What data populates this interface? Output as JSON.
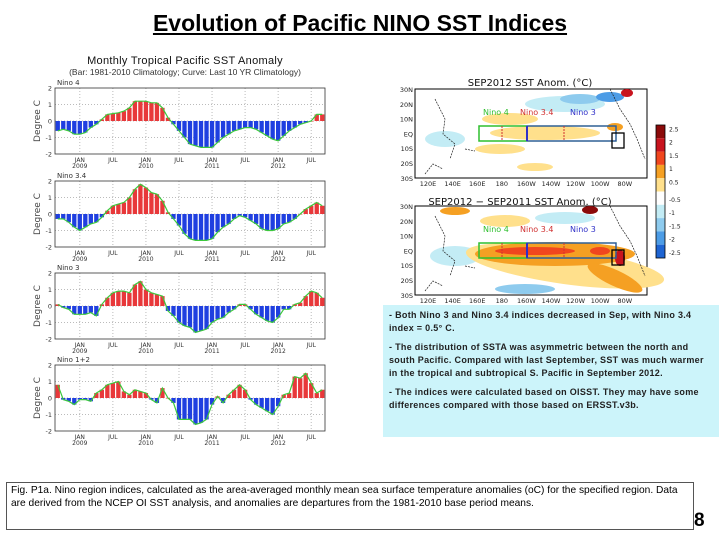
{
  "slide": {
    "title": "Evolution of Pacific NINO SST Indices",
    "page_number": "8",
    "caption": "Fig. P1a. Nino region indices, calculated as the area-averaged monthly mean sea surface temperature anomalies (oC) for the specified region. Data are derived from the NCEP OI SST analysis, and anomalies are departures from the 1981-2010 base period means."
  },
  "index_charts": {
    "title": "Monthly Tropical Pacific SST Anomaly",
    "subtitle": "(Bar: 1981-2010 Climatology; Curve: Last 10 YR Climatology)",
    "colors": {
      "positive": "#e8383a",
      "negative": "#1f3fe0",
      "curve": "#3cc83c"
    }
  },
  "chart_data": [
    {
      "type": "bar",
      "title": "Nino 4",
      "ylabel": "Degree C",
      "ylim": [
        -2,
        2
      ],
      "yticks": [
        2,
        1,
        0,
        -1,
        -2
      ],
      "grid": true,
      "x_start": "SEP 2008",
      "x_end": "SEP 2012",
      "xticks": [
        {
          "month_index": 4,
          "label": "JAN",
          "year": "2009"
        },
        {
          "month_index": 10,
          "label": "JUL",
          "year": ""
        },
        {
          "month_index": 16,
          "label": "JAN",
          "year": "2010"
        },
        {
          "month_index": 22,
          "label": "JUL",
          "year": ""
        },
        {
          "month_index": 28,
          "label": "JAN",
          "year": "2011"
        },
        {
          "month_index": 34,
          "label": "JUL",
          "year": ""
        },
        {
          "month_index": 40,
          "label": "JAN",
          "year": "2012"
        },
        {
          "month_index": 46,
          "label": "JUL",
          "year": ""
        }
      ],
      "values": [
        -0.6,
        -0.5,
        -0.6,
        -0.8,
        -0.8,
        -0.7,
        -0.4,
        -0.2,
        0.1,
        0.4,
        0.45,
        0.5,
        0.6,
        0.8,
        1.2,
        1.2,
        1.2,
        1.1,
        1.1,
        0.8,
        0.2,
        -0.2,
        -0.6,
        -1.0,
        -1.4,
        -1.5,
        -1.6,
        -1.6,
        -1.6,
        -1.3,
        -1.0,
        -0.8,
        -0.6,
        -0.5,
        -0.4,
        -0.4,
        -0.5,
        -0.7,
        -0.9,
        -1.1,
        -1.2,
        -0.9,
        -0.6,
        -0.4,
        -0.2,
        -0.1,
        0.0,
        0.4,
        0.4
      ]
    },
    {
      "type": "bar",
      "title": "Nino 3.4",
      "ylabel": "Degree C",
      "ylim": [
        -2,
        2
      ],
      "yticks": [
        2,
        1,
        0,
        -1,
        -2
      ],
      "grid": true,
      "x_start": "SEP 2008",
      "x_end": "SEP 2012",
      "xticks": [
        {
          "month_index": 4,
          "label": "JAN",
          "year": "2009"
        },
        {
          "month_index": 10,
          "label": "JUL",
          "year": ""
        },
        {
          "month_index": 16,
          "label": "JAN",
          "year": "2010"
        },
        {
          "month_index": 22,
          "label": "JUL",
          "year": ""
        },
        {
          "month_index": 28,
          "label": "JAN",
          "year": "2011"
        },
        {
          "month_index": 34,
          "label": "JUL",
          "year": ""
        },
        {
          "month_index": 40,
          "label": "JAN",
          "year": "2012"
        },
        {
          "month_index": 46,
          "label": "JUL",
          "year": ""
        }
      ],
      "values": [
        -0.3,
        -0.3,
        -0.5,
        -0.8,
        -1.0,
        -0.8,
        -0.6,
        -0.5,
        -0.2,
        0.2,
        0.5,
        0.6,
        0.7,
        1.0,
        1.5,
        1.8,
        1.6,
        1.3,
        1.2,
        0.8,
        0.1,
        -0.3,
        -0.7,
        -1.2,
        -1.5,
        -1.6,
        -1.6,
        -1.6,
        -1.5,
        -1.1,
        -0.8,
        -0.6,
        -0.3,
        -0.1,
        -0.2,
        -0.4,
        -0.6,
        -0.9,
        -1.0,
        -1.0,
        -0.9,
        -0.6,
        -0.5,
        -0.3,
        0.0,
        0.3,
        0.5,
        0.7,
        0.5
      ]
    },
    {
      "type": "bar",
      "title": "Nino 3",
      "ylabel": "Degree C",
      "ylim": [
        -2,
        2
      ],
      "yticks": [
        2,
        1,
        0,
        -1,
        -2
      ],
      "grid": true,
      "x_start": "SEP 2008",
      "x_end": "SEP 2012",
      "xticks": [
        {
          "month_index": 4,
          "label": "JAN",
          "year": "2009"
        },
        {
          "month_index": 10,
          "label": "JUL",
          "year": ""
        },
        {
          "month_index": 16,
          "label": "JAN",
          "year": "2010"
        },
        {
          "month_index": 22,
          "label": "JUL",
          "year": ""
        },
        {
          "month_index": 28,
          "label": "JAN",
          "year": "2011"
        },
        {
          "month_index": 34,
          "label": "JUL",
          "year": ""
        },
        {
          "month_index": 40,
          "label": "JAN",
          "year": "2012"
        },
        {
          "month_index": 46,
          "label": "JUL",
          "year": ""
        }
      ],
      "values": [
        0.1,
        -0.1,
        -0.2,
        -0.5,
        -0.5,
        -0.5,
        -0.4,
        -0.6,
        0.1,
        0.5,
        0.8,
        0.9,
        0.9,
        0.8,
        1.3,
        1.5,
        1.0,
        0.8,
        0.7,
        0.6,
        -0.3,
        -0.6,
        -1.0,
        -1.2,
        -1.3,
        -1.6,
        -1.5,
        -1.4,
        -1.0,
        -0.8,
        -0.7,
        -0.4,
        -0.2,
        0.1,
        0.1,
        -0.2,
        -0.5,
        -0.7,
        -0.9,
        -1.0,
        -0.7,
        -0.2,
        -0.2,
        0.1,
        0.2,
        0.6,
        0.9,
        0.8,
        0.5
      ]
    },
    {
      "type": "bar",
      "title": "Nino 1+2",
      "ylabel": "Degree C",
      "ylim": [
        -2,
        2
      ],
      "yticks": [
        2,
        1,
        0,
        -1,
        -2
      ],
      "grid": true,
      "x_start": "SEP 2008",
      "x_end": "SEP 2012",
      "xticks": [
        {
          "month_index": 4,
          "label": "JAN",
          "year": "2009"
        },
        {
          "month_index": 10,
          "label": "JUL",
          "year": ""
        },
        {
          "month_index": 16,
          "label": "JAN",
          "year": "2010"
        },
        {
          "month_index": 22,
          "label": "JUL",
          "year": ""
        },
        {
          "month_index": 28,
          "label": "JAN",
          "year": "2011"
        },
        {
          "month_index": 34,
          "label": "JUL",
          "year": ""
        },
        {
          "month_index": 40,
          "label": "JAN",
          "year": "2012"
        },
        {
          "month_index": 46,
          "label": "JUL",
          "year": ""
        }
      ],
      "values": [
        0.8,
        -0.1,
        -0.2,
        -0.4,
        -0.1,
        -0.1,
        -0.2,
        0.3,
        0.5,
        0.8,
        0.9,
        1.0,
        0.4,
        0.2,
        0.5,
        0.4,
        0.3,
        -0.1,
        -0.3,
        0.6,
        0.0,
        -0.3,
        -1.3,
        -1.3,
        -1.3,
        -1.6,
        -1.5,
        -1.3,
        -0.4,
        0.1,
        -0.3,
        0.2,
        0.5,
        0.8,
        0.5,
        -0.1,
        -0.4,
        -0.6,
        -0.8,
        -1.0,
        -0.5,
        0.2,
        0.3,
        1.3,
        1.2,
        1.5,
        0.9,
        0.3,
        0.5
      ]
    }
  ],
  "maps": {
    "top_title": "SEP2012  SST Anom. (°C)",
    "bottom_title": "SEP2012 − SEP2011  SST Anom. (°C)",
    "lat_labels": [
      "30N",
      "20N",
      "10N",
      "EQ",
      "10S",
      "20S",
      "30S"
    ],
    "lon_labels": [
      "120E",
      "140E",
      "160E",
      "180",
      "160W",
      "140W",
      "120W",
      "100W",
      "80W"
    ],
    "region_labels": [
      {
        "text": "Nino 4",
        "color": "#2fbf2f"
      },
      {
        "text": "Nino 3.4",
        "color": "#d03030"
      },
      {
        "text": "Nino 3",
        "color": "#3030c8"
      }
    ],
    "colorbar": {
      "labels": [
        "2.5",
        "2",
        "1.5",
        "1",
        "0.5",
        "-0.5",
        "-1",
        "-1.5",
        "-2",
        "-2.5"
      ],
      "colors": [
        "#8b0a0a",
        "#c8141e",
        "#f0461e",
        "#f5a023",
        "#ffe08c",
        "#ffffff",
        "#c3ecf5",
        "#8ecbee",
        "#4c9ce6",
        "#1e64d2"
      ]
    }
  },
  "notes": [
    "- Both Nino 3 and Nino 3.4 indices decreased in Sep, with Nino 3.4 index = 0.5° C.",
    "- The distribution of SSTA was asymmetric between the north and south Pacific. Compared with last September, SST was much warmer in the tropical and subtropical S. Pacific in September 2012.",
    "- The indices were calculated based on OISST. They may have some differences compared with those based on ERSST.v3b."
  ]
}
